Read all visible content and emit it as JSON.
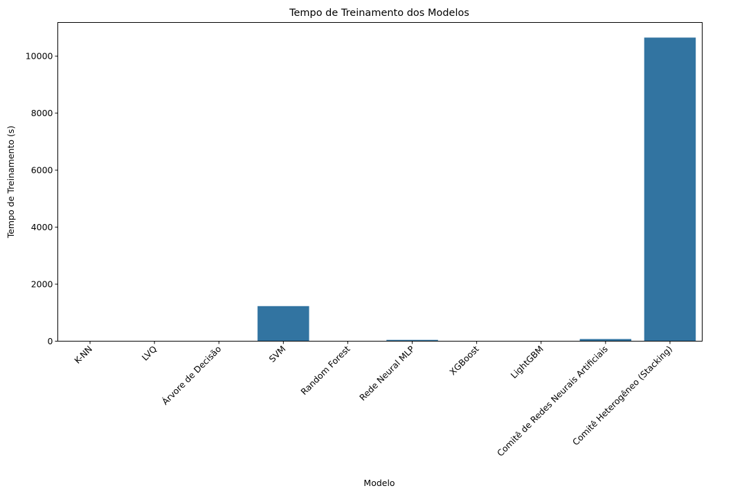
{
  "chart_data": {
    "type": "bar",
    "title": "Tempo de Treinamento dos Modelos",
    "xlabel": "Modelo",
    "ylabel": "Tempo de Treinamento (s)",
    "categories": [
      "K-NN",
      "LVQ",
      "Árvore de Decisão",
      "SVM",
      "Random Forest",
      "Rede Neural MLP",
      "XGBoost",
      "LightGBM",
      "Comitê de Redes Neurais Artificiais",
      "Comitê Heterogêneo (Stacking)"
    ],
    "values": [
      3,
      3,
      3,
      1230,
      3,
      45,
      3,
      3,
      75,
      10650
    ],
    "yticks": [
      0,
      2000,
      4000,
      6000,
      8000,
      10000
    ],
    "ylim": [
      0,
      11180
    ],
    "bar_color": "#3274a1",
    "grid": false,
    "legend": "none"
  }
}
